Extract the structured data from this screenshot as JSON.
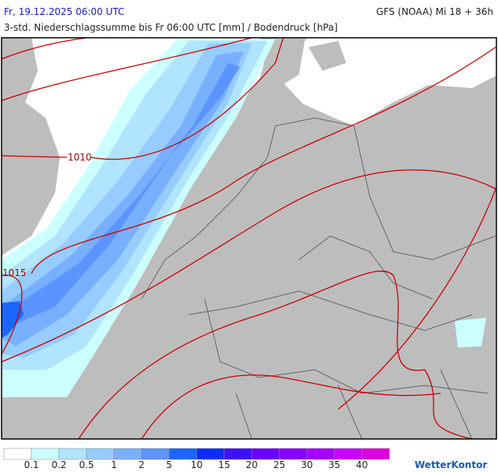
{
  "header": {
    "date": "Fr, 19.12.2025 06:00 UTC",
    "model": "GFS (NOAA) Mi 18 + 36h",
    "subtitle": "3-std. Niederschlagssumme bis Fr 06:00 UTC [mm] / Bodendruck [hPa]"
  },
  "isobars": [
    {
      "label": "1010"
    },
    {
      "label": "1015"
    }
  ],
  "legend": {
    "levels": [
      0.1,
      0.2,
      0.5,
      1,
      2,
      5,
      10,
      15,
      20,
      25,
      30,
      35,
      40
    ],
    "colors": [
      "#ffffff",
      "#ccffff",
      "#b0e4ff",
      "#96ccff",
      "#78b0ff",
      "#5c94ff",
      "#1a66ff",
      "#0a2cff",
      "#3c10ff",
      "#6a00ff",
      "#8a00ff",
      "#a600ff",
      "#c800ff",
      "#dc00dc"
    ]
  },
  "logo": "WetterKontor"
}
